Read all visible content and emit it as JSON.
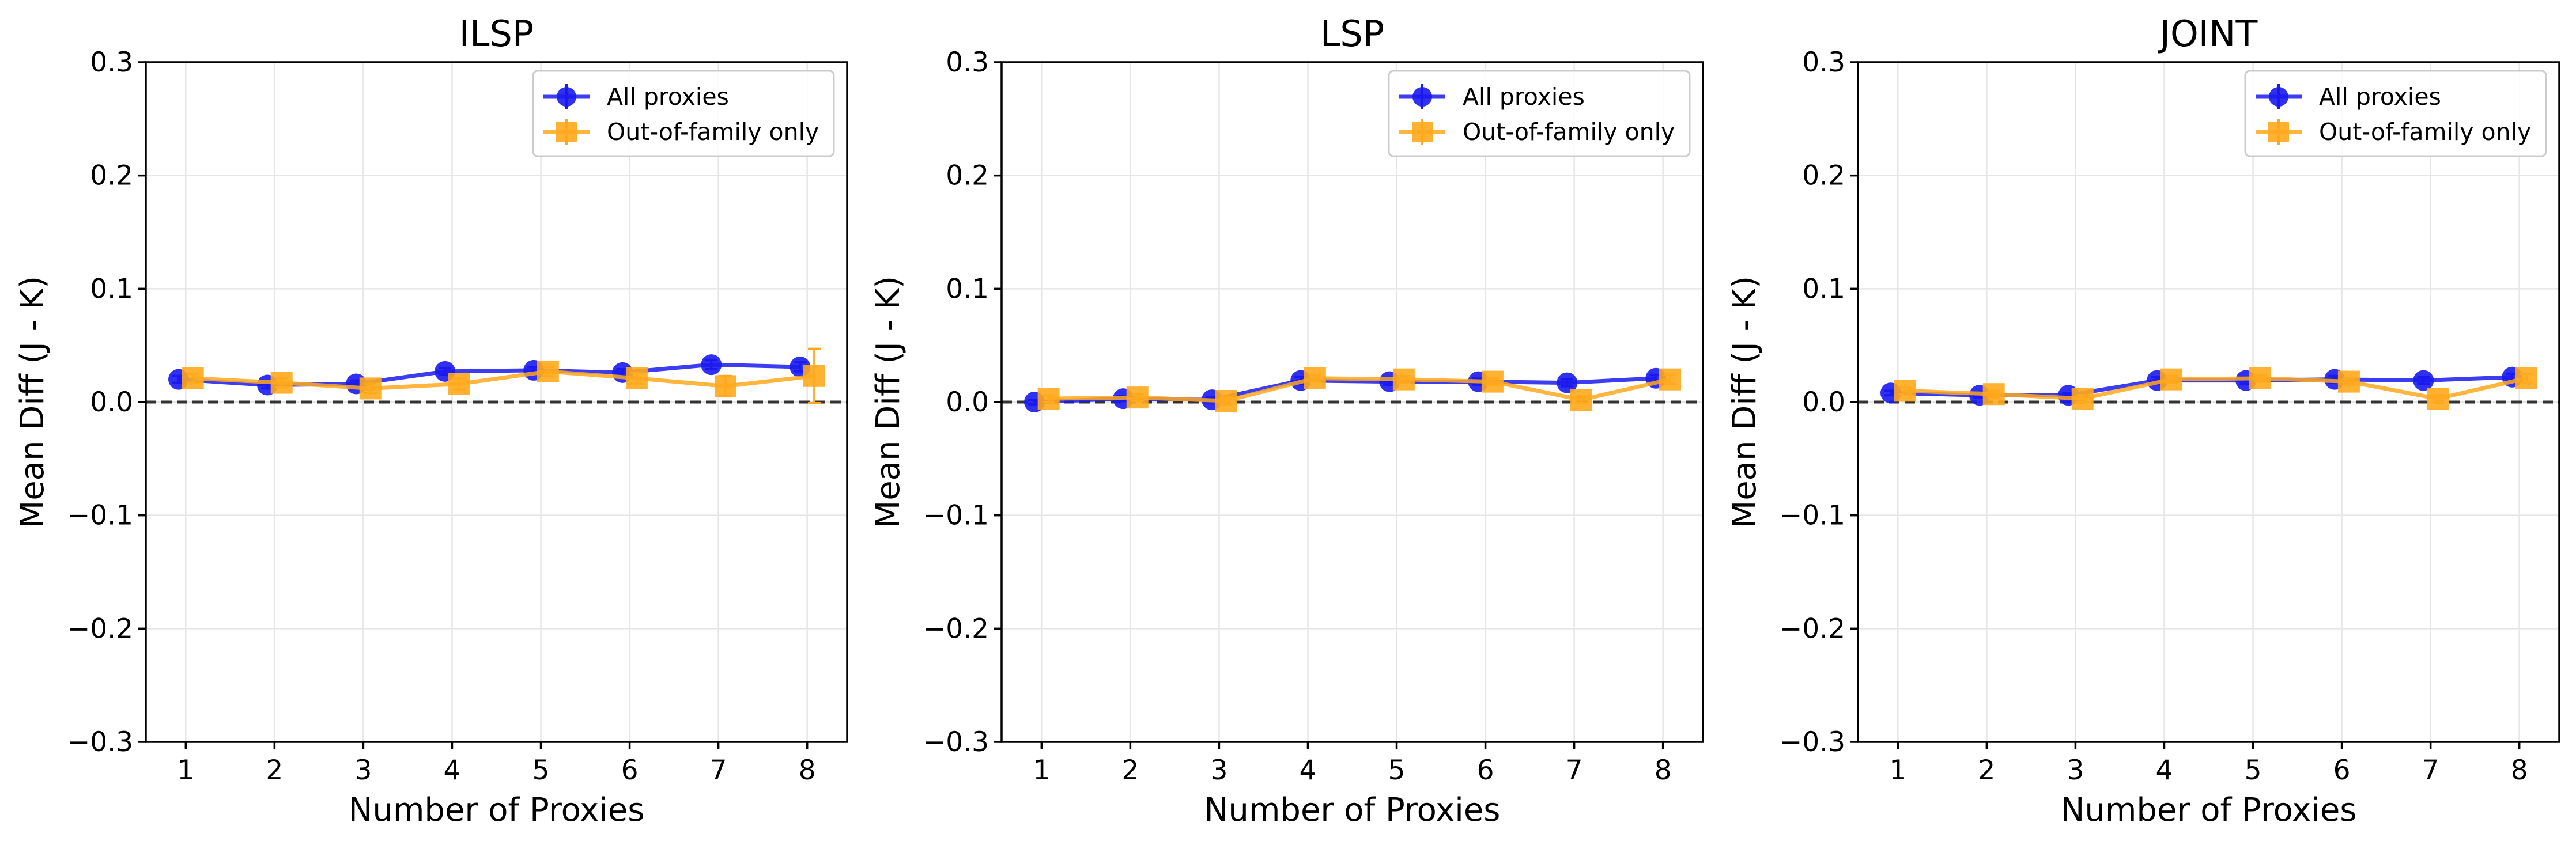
{
  "chart_data": [
    {
      "type": "line",
      "title": "ILSP",
      "xlabel": "Number of Proxies",
      "ylabel": "Mean Diff (J - K)",
      "x": [
        1,
        2,
        3,
        4,
        5,
        6,
        7,
        8
      ],
      "xlim": [
        0.55,
        8.45
      ],
      "ylim": [
        -0.3,
        0.3
      ],
      "xticks": [
        "1",
        "2",
        "3",
        "4",
        "5",
        "6",
        "7",
        "8"
      ],
      "yticks": [
        "0.3",
        "0.2",
        "0.1",
        "0.0",
        "−0.1",
        "−0.2",
        "−0.3"
      ],
      "ytick_values": [
        0.3,
        0.2,
        0.1,
        0.0,
        -0.1,
        -0.2,
        -0.3
      ],
      "grid": true,
      "reference_line": 0.0,
      "legend_position": "top-right",
      "series": [
        {
          "name": "All proxies",
          "color": "#1a1aee",
          "marker": "circle",
          "values": [
            0.02,
            0.015,
            0.016,
            0.027,
            0.028,
            0.026,
            0.033,
            0.031
          ],
          "errors": [
            0.003,
            0.003,
            0.003,
            0.003,
            0.003,
            0.003,
            0.004,
            0.004
          ]
        },
        {
          "name": "Out-of-family only",
          "color": "#ffa81c",
          "marker": "square",
          "values": [
            0.021,
            0.017,
            0.012,
            0.016,
            0.027,
            0.021,
            0.014,
            0.023
          ],
          "errors": [
            0.004,
            0.004,
            0.004,
            0.005,
            0.004,
            0.005,
            0.009,
            0.024
          ]
        }
      ]
    },
    {
      "type": "line",
      "title": "LSP",
      "xlabel": "Number of Proxies",
      "ylabel": "Mean Diff (J - K)",
      "x": [
        1,
        2,
        3,
        4,
        5,
        6,
        7,
        8
      ],
      "xlim": [
        0.55,
        8.45
      ],
      "ylim": [
        -0.3,
        0.3
      ],
      "xticks": [
        "1",
        "2",
        "3",
        "4",
        "5",
        "6",
        "7",
        "8"
      ],
      "yticks": [
        "0.3",
        "0.2",
        "0.1",
        "0.0",
        "−0.1",
        "−0.2",
        "−0.3"
      ],
      "ytick_values": [
        0.3,
        0.2,
        0.1,
        0.0,
        -0.1,
        -0.2,
        -0.3
      ],
      "grid": true,
      "reference_line": 0.0,
      "legend_position": "top-right",
      "series": [
        {
          "name": "All proxies",
          "color": "#1a1aee",
          "marker": "circle",
          "values": [
            0.0,
            0.003,
            0.002,
            0.019,
            0.018,
            0.018,
            0.017,
            0.021
          ],
          "errors": [
            0.002,
            0.002,
            0.002,
            0.003,
            0.003,
            0.003,
            0.003,
            0.003
          ]
        },
        {
          "name": "Out-of-family only",
          "color": "#ffa81c",
          "marker": "square",
          "values": [
            0.003,
            0.004,
            0.001,
            0.021,
            0.02,
            0.018,
            0.002,
            0.02
          ],
          "errors": [
            0.003,
            0.003,
            0.003,
            0.003,
            0.003,
            0.003,
            0.003,
            0.004
          ]
        }
      ]
    },
    {
      "type": "line",
      "title": "JOINT",
      "xlabel": "Number of Proxies",
      "ylabel": "Mean Diff (J - K)",
      "x": [
        1,
        2,
        3,
        4,
        5,
        6,
        7,
        8
      ],
      "xlim": [
        0.55,
        8.45
      ],
      "ylim": [
        -0.3,
        0.3
      ],
      "xticks": [
        "1",
        "2",
        "3",
        "4",
        "5",
        "6",
        "7",
        "8"
      ],
      "yticks": [
        "0.3",
        "0.2",
        "0.1",
        "0.0",
        "−0.1",
        "−0.2",
        "−0.3"
      ],
      "ytick_values": [
        0.3,
        0.2,
        0.1,
        0.0,
        -0.1,
        -0.2,
        -0.3
      ],
      "grid": true,
      "reference_line": 0.0,
      "legend_position": "top-right",
      "series": [
        {
          "name": "All proxies",
          "color": "#1a1aee",
          "marker": "circle",
          "values": [
            0.008,
            0.006,
            0.006,
            0.019,
            0.019,
            0.02,
            0.019,
            0.022
          ],
          "errors": [
            0.002,
            0.002,
            0.002,
            0.003,
            0.003,
            0.003,
            0.003,
            0.003
          ]
        },
        {
          "name": "Out-of-family only",
          "color": "#ffa81c",
          "marker": "square",
          "values": [
            0.01,
            0.007,
            0.003,
            0.02,
            0.021,
            0.018,
            0.003,
            0.021
          ],
          "errors": [
            0.003,
            0.003,
            0.003,
            0.003,
            0.003,
            0.003,
            0.003,
            0.004
          ]
        }
      ]
    }
  ]
}
